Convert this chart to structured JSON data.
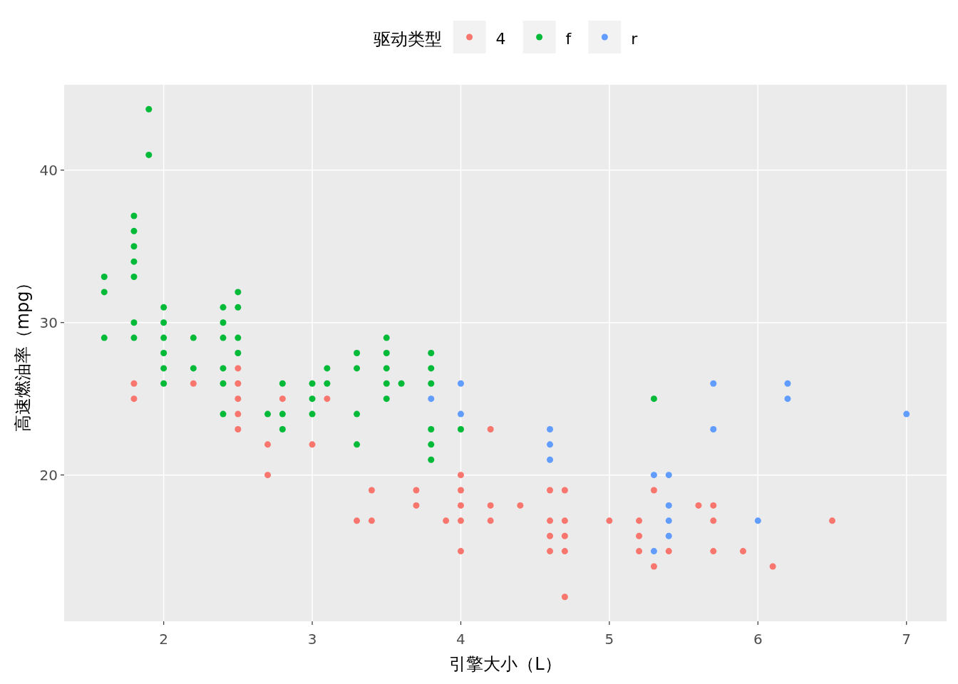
{
  "chart_data": {
    "type": "scatter",
    "xlabel": "引擎大小（L）",
    "ylabel": "高速燃油率（mpg）",
    "legend_title": "驱动类型",
    "legend": "top",
    "grid": true,
    "marker": "circle",
    "xlim": [
      1.33,
      7.27
    ],
    "ylim": [
      10.4,
      45.6
    ],
    "xticks": [
      2,
      3,
      4,
      5,
      6,
      7
    ],
    "yticks": [
      20,
      30,
      40
    ],
    "series": [
      {
        "name": "4",
        "color": "#f8766d",
        "x": [
          1.8,
          1.8,
          2.2,
          2.5,
          2.5,
          2.5,
          2.5,
          2.5,
          2.7,
          2.7,
          2.8,
          3.0,
          3.1,
          3.3,
          3.4,
          3.4,
          3.7,
          3.7,
          3.9,
          4.0,
          4.0,
          4.0,
          4.0,
          4.0,
          4.2,
          4.2,
          4.2,
          4.4,
          4.6,
          4.6,
          4.6,
          4.6,
          4.7,
          4.7,
          4.7,
          4.7,
          4.7,
          5.0,
          5.2,
          5.2,
          5.2,
          5.3,
          5.3,
          5.4,
          5.6,
          5.7,
          5.7,
          5.7,
          5.9,
          6.1,
          6.5
        ],
        "values": [
          26,
          25,
          26,
          27,
          26,
          25,
          24,
          23,
          22,
          20,
          25,
          22,
          25,
          17,
          19,
          17,
          19,
          18,
          17,
          20,
          19,
          18,
          17,
          15,
          23,
          18,
          17,
          18,
          19,
          17,
          16,
          15,
          19,
          17,
          16,
          15,
          12,
          17,
          17,
          16,
          15,
          19,
          14,
          15,
          18,
          18,
          17,
          15,
          15,
          14,
          17
        ]
      },
      {
        "name": "f",
        "color": "#00ba38",
        "x": [
          1.6,
          1.6,
          1.6,
          1.8,
          1.8,
          1.8,
          1.8,
          1.8,
          1.8,
          1.8,
          1.9,
          1.9,
          2.0,
          2.0,
          2.0,
          2.0,
          2.0,
          2.0,
          2.2,
          2.2,
          2.4,
          2.4,
          2.4,
          2.4,
          2.4,
          2.4,
          2.5,
          2.5,
          2.5,
          2.5,
          2.7,
          2.8,
          2.8,
          2.8,
          3.0,
          3.0,
          3.0,
          3.1,
          3.1,
          3.3,
          3.3,
          3.3,
          3.3,
          3.5,
          3.5,
          3.5,
          3.5,
          3.5,
          3.6,
          3.8,
          3.8,
          3.8,
          3.8,
          3.8,
          3.8,
          4.0,
          5.3
        ],
        "values": [
          33,
          32,
          29,
          37,
          36,
          35,
          34,
          33,
          30,
          29,
          44,
          41,
          31,
          30,
          29,
          28,
          27,
          26,
          29,
          27,
          31,
          30,
          29,
          27,
          26,
          24,
          32,
          31,
          29,
          28,
          24,
          26,
          24,
          23,
          26,
          25,
          24,
          27,
          26,
          28,
          27,
          24,
          22,
          29,
          28,
          27,
          26,
          25,
          26,
          28,
          27,
          26,
          23,
          22,
          21,
          23,
          25
        ]
      },
      {
        "name": "r",
        "color": "#619cff",
        "x": [
          3.8,
          4.0,
          4.0,
          4.6,
          4.6,
          4.6,
          5.3,
          5.3,
          5.4,
          5.4,
          5.4,
          5.4,
          5.7,
          5.7,
          6.0,
          6.2,
          6.2,
          7.0
        ],
        "values": [
          25,
          26,
          24,
          23,
          22,
          21,
          20,
          15,
          20,
          18,
          17,
          16,
          26,
          23,
          17,
          26,
          25,
          24
        ]
      }
    ]
  }
}
